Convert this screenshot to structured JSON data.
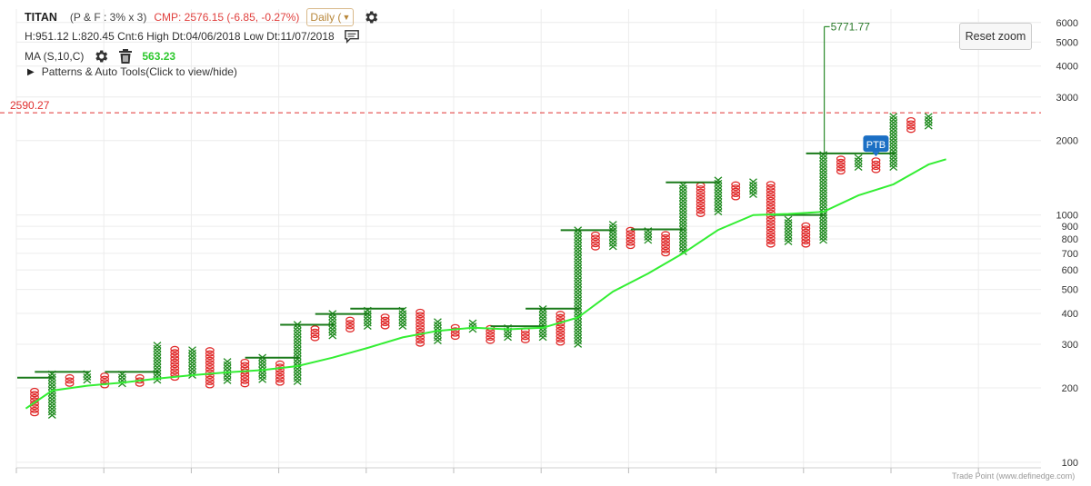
{
  "header": {
    "symbol": "TITAN",
    "pf_params": "(P & F : 3% x 3)",
    "cmp": "CMP: 2576.15 (-6.85, -0.27%)",
    "timeframe": "Daily (",
    "stats": "H:951.12 L:820.45 Cnt:6 High Dt:04/06/2018 Low Dt:11/07/2018",
    "ma_label": "MA (S,10,C)",
    "ma_value": "563.23",
    "patterns_label": "Patterns & Auto Tools(Click to view/hide)"
  },
  "controls": {
    "reset_zoom": "Reset zoom"
  },
  "credits": "Trade Point (www.definedge.com)",
  "colors": {
    "x_column": "#1e8a1e",
    "o_column": "#e02a2a",
    "moving_average": "#33ee33",
    "cmp_text": "#e0403e",
    "price_line": "#e03030",
    "ptb_badge": "#1b6fc4"
  },
  "chart_data": {
    "type": "point-and-figure",
    "box_size_pct": 3,
    "reversal": 3,
    "y_scale": "log",
    "ylim": [
      95,
      6800
    ],
    "y_ticks": [
      100,
      200,
      300,
      400,
      500,
      600,
      700,
      800,
      900,
      1000,
      2000,
      3000,
      4000,
      5000,
      6000
    ],
    "price_line": {
      "value": 2590.27,
      "label": "2590.27"
    },
    "annotations": [
      {
        "text": "5771.77",
        "value": 5771.77
      },
      {
        "text": "PTB",
        "value": 1800
      }
    ],
    "columns": [
      {
        "type": "O",
        "high": 200,
        "low": 158
      },
      {
        "type": "X",
        "high": 230,
        "low": 155
      },
      {
        "type": "O",
        "high": 222,
        "low": 208
      },
      {
        "type": "X",
        "high": 234,
        "low": 215
      },
      {
        "type": "O",
        "high": 228,
        "low": 205
      },
      {
        "type": "X",
        "high": 228,
        "low": 208
      },
      {
        "type": "O",
        "high": 222,
        "low": 208
      },
      {
        "type": "X",
        "high": 300,
        "low": 215
      },
      {
        "type": "O",
        "high": 290,
        "low": 220
      },
      {
        "type": "X",
        "high": 292,
        "low": 225
      },
      {
        "type": "O",
        "high": 288,
        "low": 205
      },
      {
        "type": "X",
        "high": 262,
        "low": 214
      },
      {
        "type": "O",
        "high": 262,
        "low": 207
      },
      {
        "type": "X",
        "high": 270,
        "low": 216
      },
      {
        "type": "O",
        "high": 258,
        "low": 210
      },
      {
        "type": "X",
        "high": 362,
        "low": 212
      },
      {
        "type": "O",
        "high": 352,
        "low": 318
      },
      {
        "type": "X",
        "high": 400,
        "low": 325
      },
      {
        "type": "O",
        "high": 388,
        "low": 345
      },
      {
        "type": "X",
        "high": 412,
        "low": 355
      },
      {
        "type": "O",
        "high": 395,
        "low": 355
      },
      {
        "type": "X",
        "high": 420,
        "low": 355
      },
      {
        "type": "O",
        "high": 412,
        "low": 302
      },
      {
        "type": "X",
        "high": 375,
        "low": 310
      },
      {
        "type": "O",
        "high": 360,
        "low": 322
      },
      {
        "type": "X",
        "high": 375,
        "low": 345
      },
      {
        "type": "O",
        "high": 355,
        "low": 310
      },
      {
        "type": "X",
        "high": 360,
        "low": 320
      },
      {
        "type": "O",
        "high": 348,
        "low": 312
      },
      {
        "type": "X",
        "high": 420,
        "low": 320
      },
      {
        "type": "O",
        "high": 400,
        "low": 305
      },
      {
        "type": "X",
        "high": 870,
        "low": 300
      },
      {
        "type": "O",
        "high": 850,
        "low": 740
      },
      {
        "type": "X",
        "high": 920,
        "low": 745
      },
      {
        "type": "O",
        "high": 870,
        "low": 750
      },
      {
        "type": "X",
        "high": 880,
        "low": 790
      },
      {
        "type": "O",
        "high": 860,
        "low": 700
      },
      {
        "type": "X",
        "high": 1360,
        "low": 710
      },
      {
        "type": "O",
        "high": 1320,
        "low": 1010
      },
      {
        "type": "X",
        "high": 1390,
        "low": 1030
      },
      {
        "type": "O",
        "high": 1360,
        "low": 1180
      },
      {
        "type": "X",
        "high": 1390,
        "low": 1210
      },
      {
        "type": "O",
        "high": 1340,
        "low": 760
      },
      {
        "type": "X",
        "high": 960,
        "low": 780
      },
      {
        "type": "O",
        "high": 930,
        "low": 760
      },
      {
        "type": "X",
        "high": 1780,
        "low": 790
      },
      {
        "type": "O",
        "high": 1720,
        "low": 1500
      },
      {
        "type": "X",
        "high": 1730,
        "low": 1560
      },
      {
        "type": "O",
        "high": 1700,
        "low": 1520
      },
      {
        "type": "X",
        "high": 2550,
        "low": 1560
      },
      {
        "type": "O",
        "high": 2470,
        "low": 2210
      },
      {
        "type": "X",
        "high": 2560,
        "low": 2290
      }
    ],
    "resistance_levels": [
      {
        "value": 220,
        "from_col": 0,
        "to_col": 1
      },
      {
        "value": 232,
        "from_col": 1,
        "to_col": 3
      },
      {
        "value": 232,
        "from_col": 5,
        "to_col": 7
      },
      {
        "value": 265,
        "from_col": 13,
        "to_col": 15
      },
      {
        "value": 360,
        "from_col": 15,
        "to_col": 17
      },
      {
        "value": 398,
        "from_col": 17,
        "to_col": 19
      },
      {
        "value": 418,
        "from_col": 19,
        "to_col": 21
      },
      {
        "value": 355,
        "from_col": 27,
        "to_col": 29
      },
      {
        "value": 418,
        "from_col": 29,
        "to_col": 31
      },
      {
        "value": 868,
        "from_col": 31,
        "to_col": 33
      },
      {
        "value": 875,
        "from_col": 35,
        "to_col": 37
      },
      {
        "value": 1355,
        "from_col": 37,
        "to_col": 39
      },
      {
        "value": 1000,
        "from_col": 43,
        "to_col": 45
      },
      {
        "value": 1775,
        "from_col": 45,
        "to_col": 49
      }
    ],
    "moving_average": [
      {
        "col": -0.5,
        "value": 165
      },
      {
        "col": 1,
        "value": 195
      },
      {
        "col": 3,
        "value": 204
      },
      {
        "col": 5,
        "value": 210
      },
      {
        "col": 7,
        "value": 218
      },
      {
        "col": 9,
        "value": 225
      },
      {
        "col": 11,
        "value": 231
      },
      {
        "col": 13,
        "value": 236
      },
      {
        "col": 15,
        "value": 245
      },
      {
        "col": 17,
        "value": 265
      },
      {
        "col": 19,
        "value": 290
      },
      {
        "col": 21,
        "value": 320
      },
      {
        "col": 23,
        "value": 340
      },
      {
        "col": 25,
        "value": 350
      },
      {
        "col": 27,
        "value": 345
      },
      {
        "col": 29,
        "value": 350
      },
      {
        "col": 31,
        "value": 385
      },
      {
        "col": 33,
        "value": 490
      },
      {
        "col": 35,
        "value": 580
      },
      {
        "col": 37,
        "value": 700
      },
      {
        "col": 39,
        "value": 870
      },
      {
        "col": 41,
        "value": 1000
      },
      {
        "col": 43,
        "value": 1010
      },
      {
        "col": 45,
        "value": 1030
      },
      {
        "col": 47,
        "value": 1200
      },
      {
        "col": 49,
        "value": 1330
      },
      {
        "col": 51,
        "value": 1600
      },
      {
        "col": 52,
        "value": 1680
      }
    ]
  }
}
